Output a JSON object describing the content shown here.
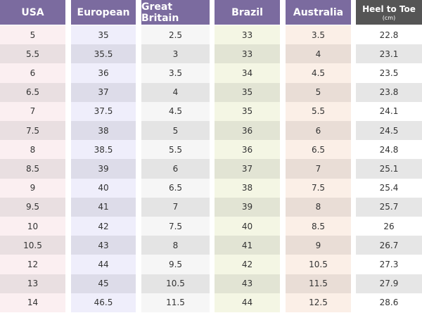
{
  "table": {
    "headers": [
      "USA",
      "European",
      "Great Britain",
      "Brazil",
      "Australia",
      "Heel to Toe"
    ],
    "header_note": "(cm)",
    "rows": [
      [
        "5",
        "35",
        "2.5",
        "33",
        "3.5",
        "22.8"
      ],
      [
        "5.5",
        "35.5",
        "3",
        "33",
        "4",
        "23.1"
      ],
      [
        "6",
        "36",
        "3.5",
        "34",
        "4.5",
        "23.5"
      ],
      [
        "6.5",
        "37",
        "4",
        "35",
        "5",
        "23.8"
      ],
      [
        "7",
        "37.5",
        "4.5",
        "35",
        "5.5",
        "24.1"
      ],
      [
        "7.5",
        "38",
        "5",
        "36",
        "6",
        "24.5"
      ],
      [
        "8",
        "38.5",
        "5.5",
        "36",
        "6.5",
        "24.8"
      ],
      [
        "8.5",
        "39",
        "6",
        "37",
        "7",
        "25.1"
      ],
      [
        "9",
        "40",
        "6.5",
        "38",
        "7.5",
        "25.4"
      ],
      [
        "9.5",
        "41",
        "7",
        "39",
        "8",
        "25.7"
      ],
      [
        "10",
        "42",
        "7.5",
        "40",
        "8.5",
        "26"
      ],
      [
        "10.5",
        "43",
        "8",
        "41",
        "9",
        "26.7"
      ],
      [
        "12",
        "44",
        "9.5",
        "42",
        "10.5",
        "27.3"
      ],
      [
        "13",
        "45",
        "10.5",
        "43",
        "11.5",
        "27.9"
      ],
      [
        "14",
        "46.5",
        "11.5",
        "44",
        "12.5",
        "28.6"
      ]
    ]
  }
}
